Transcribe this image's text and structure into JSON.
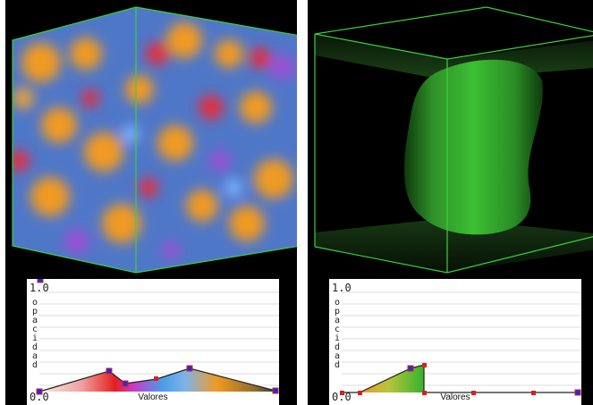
{
  "panels": [
    {
      "editor": {
        "y_max_label": "1.0",
        "y_min_label": "0.0",
        "y_axis_label": "opacidad",
        "x_axis_label": "Valores"
      }
    },
    {
      "editor": {
        "y_max_label": "1.0",
        "y_min_label": "0.0",
        "y_axis_label": "opacidad",
        "x_axis_label": "Valores"
      }
    }
  ],
  "colors": {
    "bounding_box": "#39d13c",
    "control_point": "#2a2ad6",
    "control_point_secondary": "#d62020",
    "volume_left": [
      "#f09a23",
      "#5a8fe8",
      "#e42d43",
      "#9b4fd3"
    ],
    "volume_right": "#2fa32a"
  }
}
